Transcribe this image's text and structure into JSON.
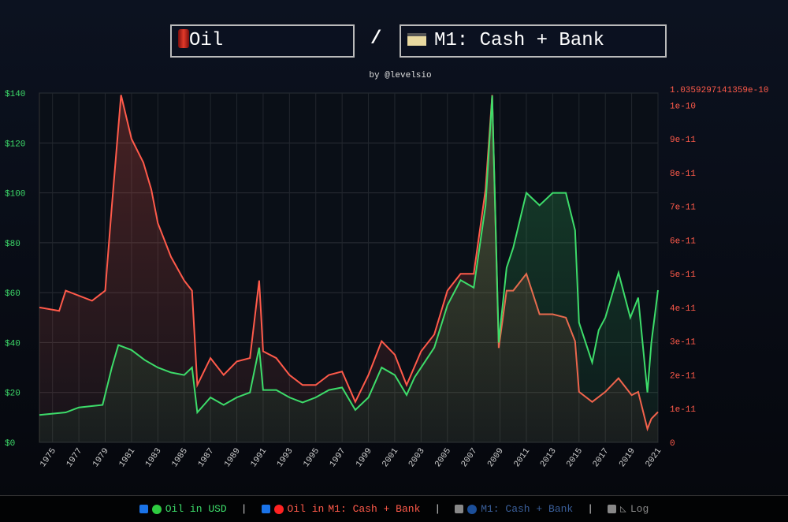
{
  "header": {
    "numerator": "Oil",
    "numerator_icon": "oil-barrel-icon",
    "slash": "/",
    "denominator": "M1: Cash + Bank",
    "denominator_icon": "credit-card-icon",
    "byline": "by @levelsio"
  },
  "legend": [
    {
      "label": "Oil in USD",
      "checked": true,
      "color": "#3ddc6a"
    },
    {
      "label_a": "Oil in",
      "label_b": "M1: Cash + Bank",
      "checked": true,
      "color": "#ff5a4a"
    },
    {
      "label": "M1: Cash + Bank",
      "checked": false,
      "color": "#3a5f9a"
    },
    {
      "label": "Log",
      "checked": false,
      "color": "#888"
    }
  ],
  "chart_data": {
    "type": "line",
    "x_ticks": [
      "1975",
      "1977",
      "1979",
      "1981",
      "1983",
      "1985",
      "1987",
      "1989",
      "1991",
      "1993",
      "1995",
      "1997",
      "1999",
      "2001",
      "2003",
      "2005",
      "2007",
      "2009",
      "2011",
      "2013",
      "2015",
      "2017",
      "2019",
      "2021"
    ],
    "xlim": [
      1974,
      2021
    ],
    "left_axis": {
      "ylim": [
        0,
        140
      ],
      "ticks": [
        "$0",
        "$20",
        "$40",
        "$60",
        "$80",
        "$100",
        "$120",
        "$140"
      ],
      "color": "#3ddc6a"
    },
    "right_axis": {
      "ylim": [
        0,
        1.0359297141359e-10
      ],
      "ticks": [
        "0",
        "1e-11",
        "2e-11",
        "3e-11",
        "4e-11",
        "5e-11",
        "6e-11",
        "7e-11",
        "8e-11",
        "9e-11",
        "1e-10",
        "1.0359297141359e-10"
      ],
      "color": "#ff5a4a"
    },
    "series": [
      {
        "name": "Oil in USD",
        "axis": "left",
        "color": "#3ddc6a",
        "points": [
          [
            1974,
            11
          ],
          [
            1976,
            12
          ],
          [
            1977,
            14
          ],
          [
            1978.8,
            15
          ],
          [
            1979.5,
            30
          ],
          [
            1980,
            39
          ],
          [
            1981,
            37
          ],
          [
            1982,
            33
          ],
          [
            1983,
            30
          ],
          [
            1984,
            28
          ],
          [
            1985,
            27
          ],
          [
            1985.6,
            30
          ],
          [
            1986,
            12
          ],
          [
            1986.5,
            15
          ],
          [
            1987,
            18
          ],
          [
            1988,
            15
          ],
          [
            1989,
            18
          ],
          [
            1990,
            20
          ],
          [
            1990.7,
            38
          ],
          [
            1991,
            21
          ],
          [
            1992,
            21
          ],
          [
            1993,
            18
          ],
          [
            1994,
            16
          ],
          [
            1995,
            18
          ],
          [
            1996,
            21
          ],
          [
            1997,
            22
          ],
          [
            1998,
            13
          ],
          [
            1999,
            18
          ],
          [
            2000,
            30
          ],
          [
            2001,
            27
          ],
          [
            2001.9,
            19
          ],
          [
            2002.5,
            26
          ],
          [
            2003,
            30
          ],
          [
            2004,
            38
          ],
          [
            2005,
            55
          ],
          [
            2006,
            65
          ],
          [
            2007,
            62
          ],
          [
            2007.9,
            95
          ],
          [
            2008.4,
            139
          ],
          [
            2008.9,
            40
          ],
          [
            2009.5,
            70
          ],
          [
            2010,
            78
          ],
          [
            2011,
            100
          ],
          [
            2012,
            95
          ],
          [
            2013,
            100
          ],
          [
            2014,
            100
          ],
          [
            2014.7,
            85
          ],
          [
            2015,
            48
          ],
          [
            2016,
            32
          ],
          [
            2016.5,
            45
          ],
          [
            2017,
            50
          ],
          [
            2018,
            68
          ],
          [
            2018.9,
            50
          ],
          [
            2019.5,
            58
          ],
          [
            2020.2,
            20
          ],
          [
            2020.5,
            40
          ],
          [
            2021,
            61
          ]
        ]
      },
      {
        "name": "Oil in M1: Cash + Bank",
        "axis": "right",
        "scale": 1e-11,
        "color": "#ff5a4a",
        "points": [
          [
            1974,
            4.0
          ],
          [
            1975.5,
            3.9
          ],
          [
            1976,
            4.5
          ],
          [
            1978,
            4.2
          ],
          [
            1979,
            4.5
          ],
          [
            1979.5,
            7
          ],
          [
            1980.2,
            10.3
          ],
          [
            1981,
            9.0
          ],
          [
            1981.9,
            8.3
          ],
          [
            1982.5,
            7.5
          ],
          [
            1983,
            6.5
          ],
          [
            1984,
            5.5
          ],
          [
            1985,
            4.8
          ],
          [
            1985.6,
            4.5
          ],
          [
            1986,
            1.7
          ],
          [
            1987,
            2.5
          ],
          [
            1988,
            2.0
          ],
          [
            1989,
            2.4
          ],
          [
            1990,
            2.5
          ],
          [
            1990.7,
            4.8
          ],
          [
            1991,
            2.7
          ],
          [
            1992,
            2.5
          ],
          [
            1993,
            2.0
          ],
          [
            1994,
            1.7
          ],
          [
            1995,
            1.7
          ],
          [
            1996,
            2.0
          ],
          [
            1997,
            2.1
          ],
          [
            1998,
            1.2
          ],
          [
            1999,
            2.0
          ],
          [
            2000,
            3.0
          ],
          [
            2001,
            2.6
          ],
          [
            2001.9,
            1.7
          ],
          [
            2003,
            2.7
          ],
          [
            2004,
            3.2
          ],
          [
            2005,
            4.5
          ],
          [
            2006,
            5.0
          ],
          [
            2007,
            5.0
          ],
          [
            2007.9,
            7.5
          ],
          [
            2008.4,
            10.3
          ],
          [
            2008.9,
            2.8
          ],
          [
            2009.5,
            4.5
          ],
          [
            2010,
            4.5
          ],
          [
            2011,
            5.0
          ],
          [
            2012,
            3.8
          ],
          [
            2013,
            3.8
          ],
          [
            2014,
            3.7
          ],
          [
            2014.7,
            3.0
          ],
          [
            2015,
            1.5
          ],
          [
            2016,
            1.2
          ],
          [
            2017,
            1.5
          ],
          [
            2018,
            1.9
          ],
          [
            2019,
            1.4
          ],
          [
            2019.5,
            1.5
          ],
          [
            2020.2,
            0.4
          ],
          [
            2020.5,
            0.7
          ],
          [
            2021,
            0.9
          ]
        ]
      }
    ]
  }
}
